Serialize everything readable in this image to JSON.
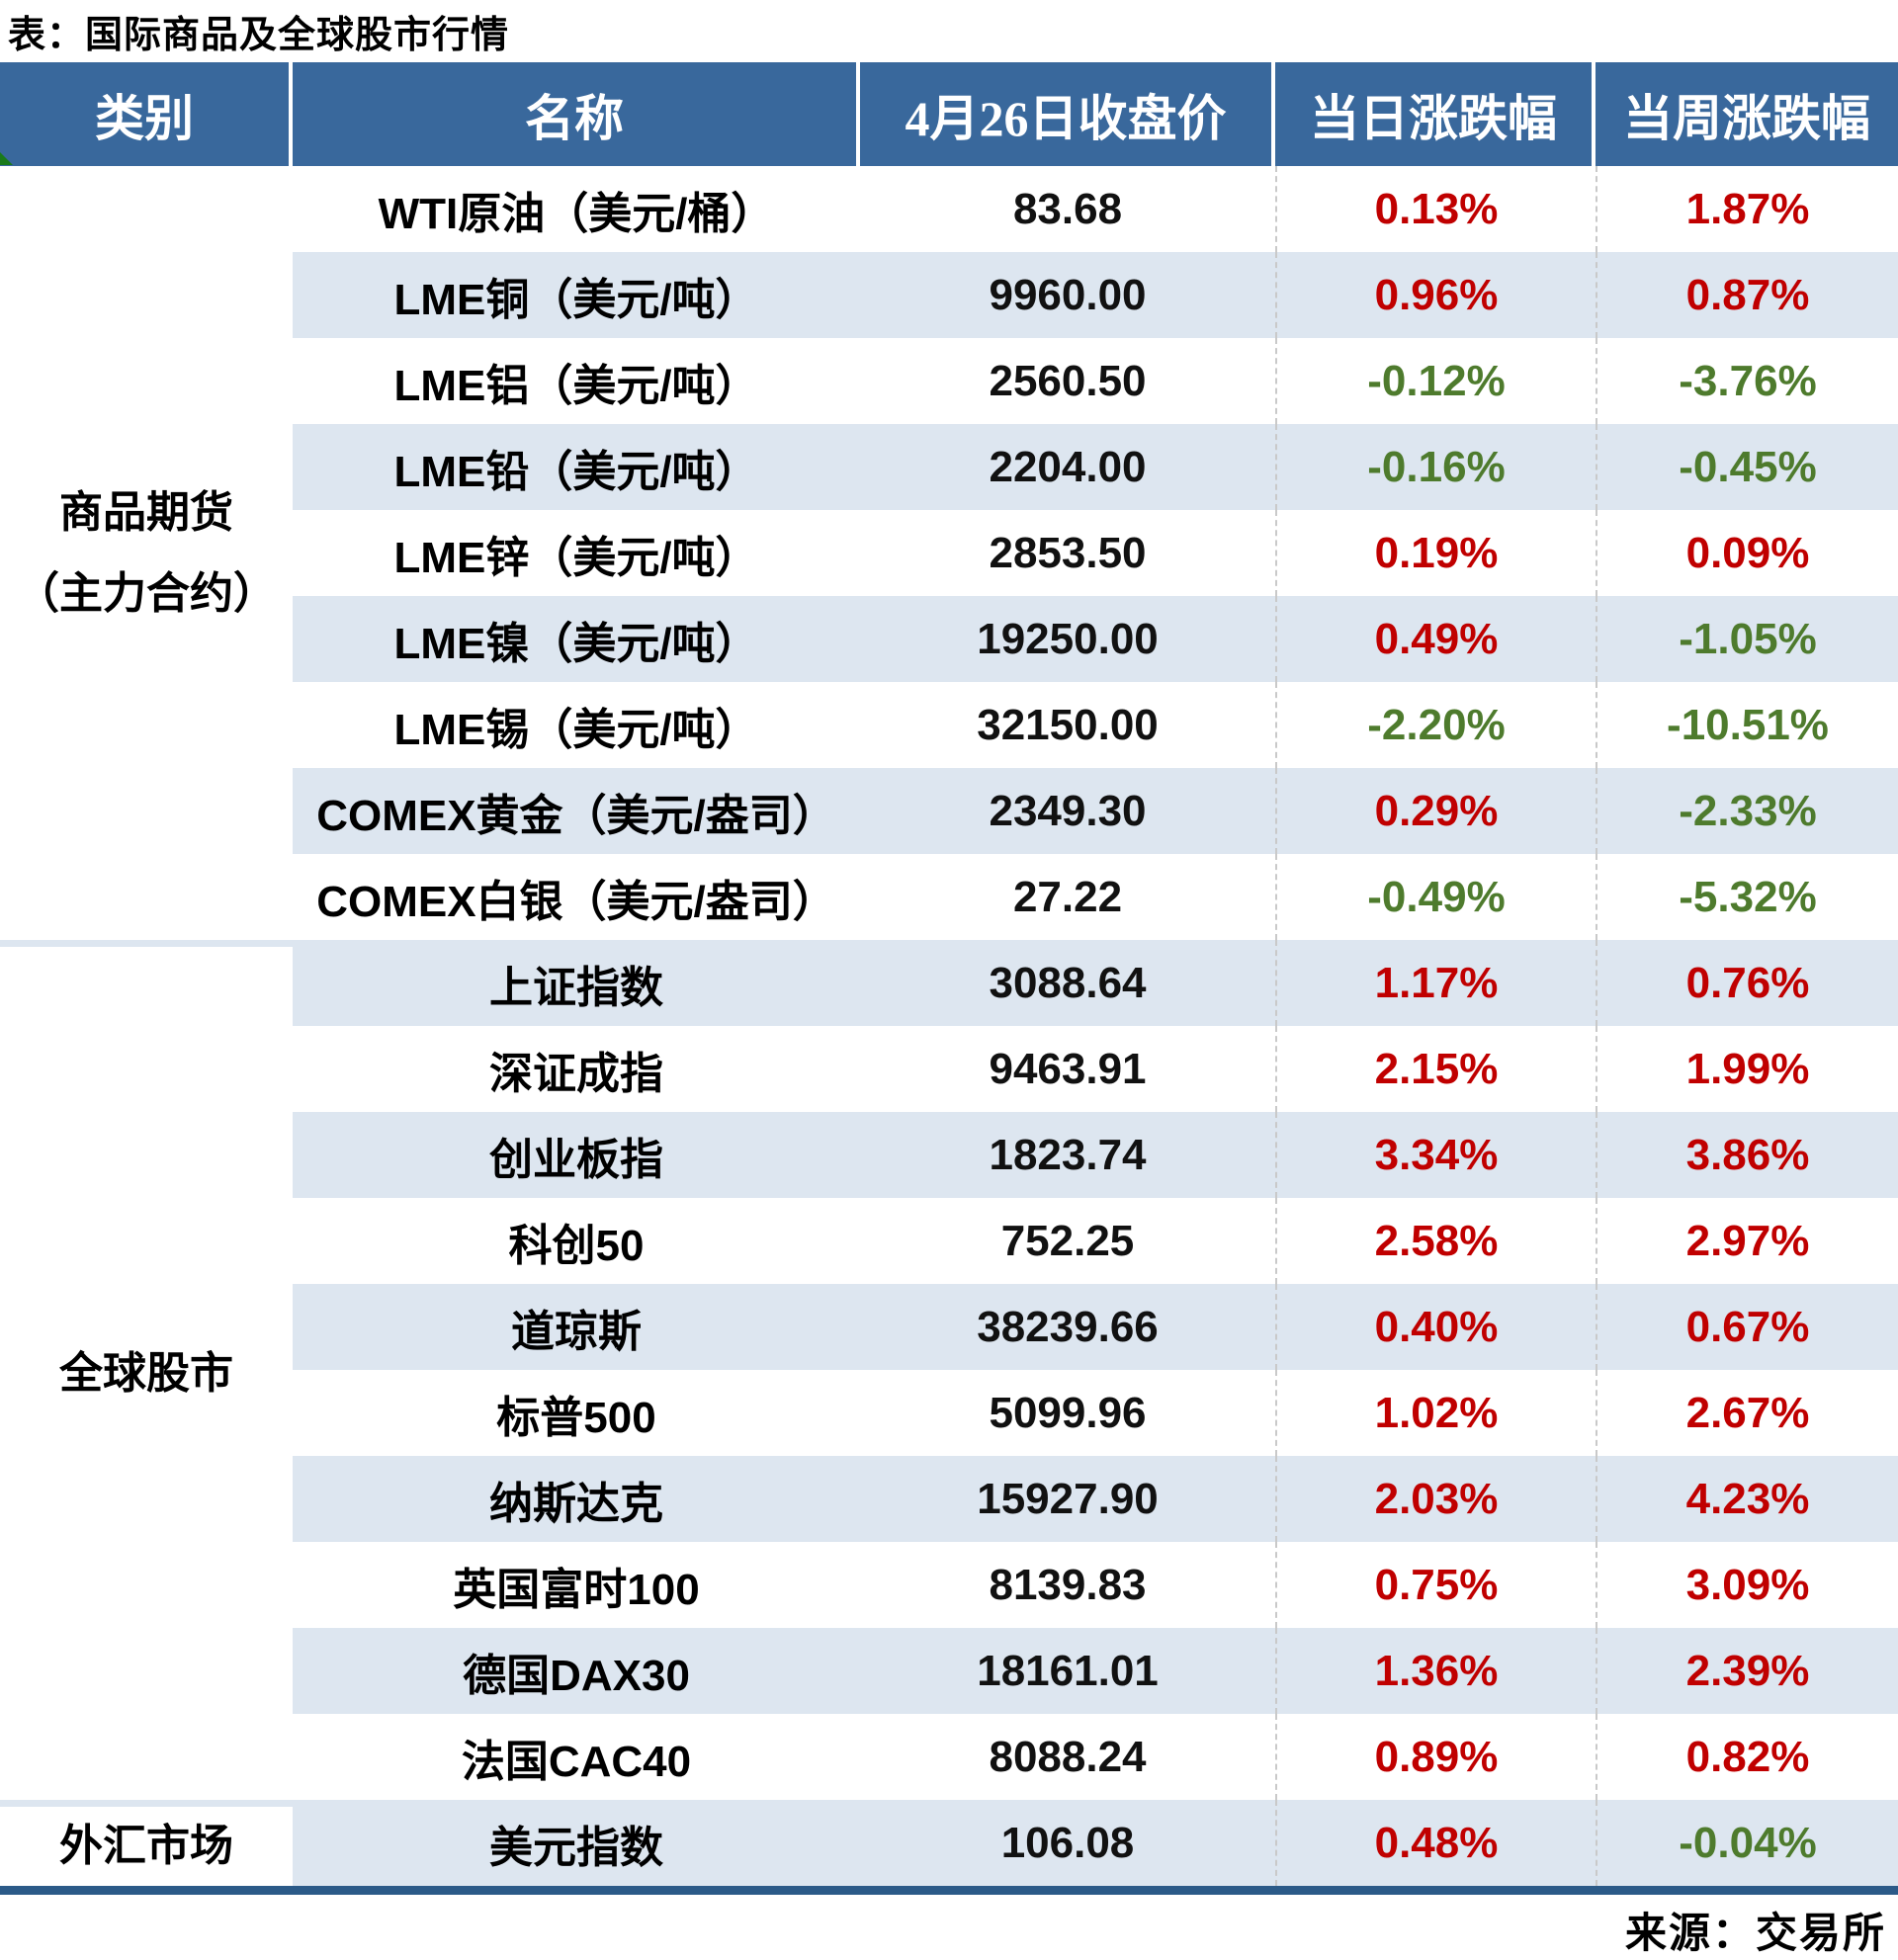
{
  "title": "表：国际商品及全球股市行情",
  "footer": {
    "source": "来源：交易所"
  },
  "colors": {
    "header_bg": "#39689C",
    "header_text": "#FFFFFF",
    "row_alt_bg": "#DDE6F0",
    "up_red": "#C00000",
    "down_green": "#4E7B2D",
    "bottom_border": "#2B5A88",
    "corner_marker_green": "#1A7A1A"
  },
  "table": {
    "headers": [
      "类别",
      "名称",
      "4月26日收盘价",
      "当日涨跌幅",
      "当周涨跌幅"
    ],
    "sections": [
      {
        "category_lines": [
          "商品期货",
          "（主力合约）"
        ],
        "rows": [
          {
            "name": "WTI原油（美元/桶）",
            "close": "83.68",
            "daily": "0.13%",
            "weekly": "1.87%"
          },
          {
            "name": "LME铜（美元/吨）",
            "close": "9960.00",
            "daily": "0.96%",
            "weekly": "0.87%"
          },
          {
            "name": "LME铝（美元/吨）",
            "close": "2560.50",
            "daily": "-0.12%",
            "weekly": "-3.76%"
          },
          {
            "name": "LME铅（美元/吨）",
            "close": "2204.00",
            "daily": "-0.16%",
            "weekly": "-0.45%"
          },
          {
            "name": "LME锌（美元/吨）",
            "close": "2853.50",
            "daily": "0.19%",
            "weekly": "0.09%"
          },
          {
            "name": "LME镍（美元/吨）",
            "close": "19250.00",
            "daily": "0.49%",
            "weekly": "-1.05%"
          },
          {
            "name": "LME锡（美元/吨）",
            "close": "32150.00",
            "daily": "-2.20%",
            "weekly": "-10.51%"
          },
          {
            "name": "COMEX黄金（美元/盎司）",
            "close": "2349.30",
            "daily": "0.29%",
            "weekly": "-2.33%"
          },
          {
            "name": "COMEX白银（美元/盎司）",
            "close": "27.22",
            "daily": "-0.49%",
            "weekly": "-5.32%"
          }
        ]
      },
      {
        "category_lines": [
          "全球股市"
        ],
        "rows": [
          {
            "name": "上证指数",
            "close": "3088.64",
            "daily": "1.17%",
            "weekly": "0.76%"
          },
          {
            "name": "深证成指",
            "close": "9463.91",
            "daily": "2.15%",
            "weekly": "1.99%"
          },
          {
            "name": "创业板指",
            "close": "1823.74",
            "daily": "3.34%",
            "weekly": "3.86%"
          },
          {
            "name": "科创50",
            "close": "752.25",
            "daily": "2.58%",
            "weekly": "2.97%"
          },
          {
            "name": "道琼斯",
            "close": "38239.66",
            "daily": "0.40%",
            "weekly": "0.67%"
          },
          {
            "name": "标普500",
            "close": "5099.96",
            "daily": "1.02%",
            "weekly": "2.67%"
          },
          {
            "name": "纳斯达克",
            "close": "15927.90",
            "daily": "2.03%",
            "weekly": "4.23%"
          },
          {
            "name": "英国富时100",
            "close": "8139.83",
            "daily": "0.75%",
            "weekly": "3.09%"
          },
          {
            "name": "德国DAX30",
            "close": "18161.01",
            "daily": "1.36%",
            "weekly": "2.39%"
          },
          {
            "name": "法国CAC40",
            "close": "8088.24",
            "daily": "0.89%",
            "weekly": "0.82%"
          }
        ]
      },
      {
        "category_lines": [
          "外汇市场"
        ],
        "rows": [
          {
            "name": "美元指数",
            "close": "106.08",
            "daily": "0.48%",
            "weekly": "-0.04%"
          }
        ]
      }
    ]
  }
}
